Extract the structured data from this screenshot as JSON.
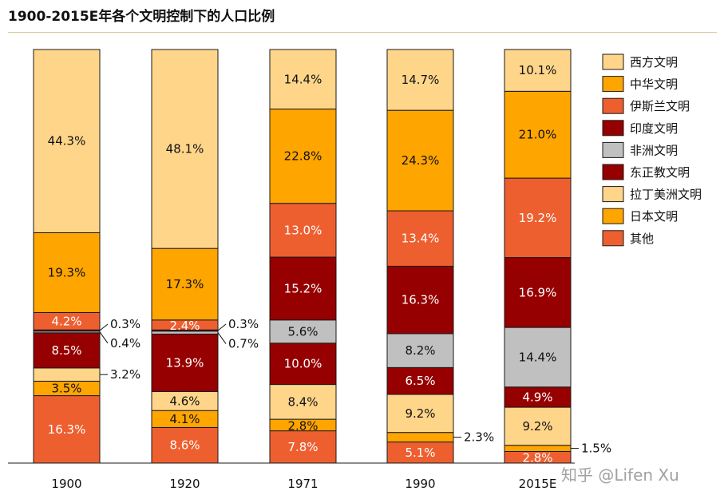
{
  "title": "1900-2015E年各个文明控制下的人口比例",
  "watermark": "知乎 @Lifen Xu",
  "colors": {
    "西方文明": "#FFD58A",
    "中华文明": "#FFA500",
    "伊斯兰文明": "#EE5F30",
    "印度文明": "#960000",
    "非洲文明": "#C0C0C0",
    "东正教文明": "#960000",
    "拉丁美洲文明": "#FFD58A",
    "日本文明": "#FFA500",
    "其他": "#EE5F30"
  },
  "chart_data": {
    "type": "bar",
    "stacked": true,
    "title": "1900-2015E年各个文明控制下的人口比例",
    "categories": [
      "1900",
      "1920",
      "1971",
      "1990",
      "2015E"
    ],
    "ylim": [
      0,
      100
    ],
    "unit": "%",
    "legend_position": "right",
    "legend": [
      "西方文明",
      "中华文明",
      "伊斯兰文明",
      "印度文明",
      "非洲文明",
      "东正教文明",
      "拉丁美洲文明",
      "日本文明",
      "其他"
    ],
    "series": [
      {
        "name": "西方文明",
        "values": [
          44.3,
          48.1,
          14.4,
          14.7,
          10.1
        ],
        "labels": [
          "44.3%",
          "48.1%",
          "14.4%",
          "14.7%",
          "10.1%"
        ]
      },
      {
        "name": "中华文明",
        "values": [
          19.3,
          17.3,
          22.8,
          24.3,
          21.0
        ],
        "labels": [
          "19.3%",
          "17.3%",
          "22.8%",
          "24.3%",
          "21.0%"
        ]
      },
      {
        "name": "伊斯兰文明",
        "values": [
          4.2,
          2.4,
          13.0,
          13.4,
          19.2
        ],
        "labels": [
          "4.2%",
          "2.4%",
          "13.0%",
          "13.4%",
          "19.2%"
        ]
      },
      {
        "name": "印度文明",
        "values": [
          0.3,
          0.3,
          15.2,
          16.3,
          16.9
        ],
        "labels": [
          "0.3%",
          "0.3%",
          "15.2%",
          "16.3%",
          "16.9%"
        ]
      },
      {
        "name": "非洲文明",
        "values": [
          0.4,
          0.7,
          5.6,
          8.2,
          14.4
        ],
        "labels": [
          "0.4%",
          "0.7%",
          "5.6%",
          "8.2%",
          "14.4%"
        ]
      },
      {
        "name": "东正教文明",
        "values": [
          8.5,
          13.9,
          10.0,
          6.5,
          4.9
        ],
        "labels": [
          "8.5%",
          "13.9%",
          "10.0%",
          "6.5%",
          "4.9%"
        ]
      },
      {
        "name": "拉丁美洲文明",
        "values": [
          3.2,
          4.6,
          8.4,
          9.2,
          9.2
        ],
        "labels": [
          "3.2%",
          "4.6%",
          "8.4%",
          "9.2%",
          "9.2%"
        ]
      },
      {
        "name": "日本文明",
        "values": [
          3.5,
          4.1,
          2.8,
          2.3,
          1.5
        ],
        "labels": [
          "3.5%",
          "4.1%",
          "2.8%",
          "2.3%",
          "1.5%"
        ]
      },
      {
        "name": "其他",
        "values": [
          16.3,
          8.6,
          7.8,
          5.1,
          2.8
        ],
        "labels": [
          "16.3%",
          "8.6%",
          "7.8%",
          "5.1%",
          "2.8%"
        ]
      }
    ]
  }
}
